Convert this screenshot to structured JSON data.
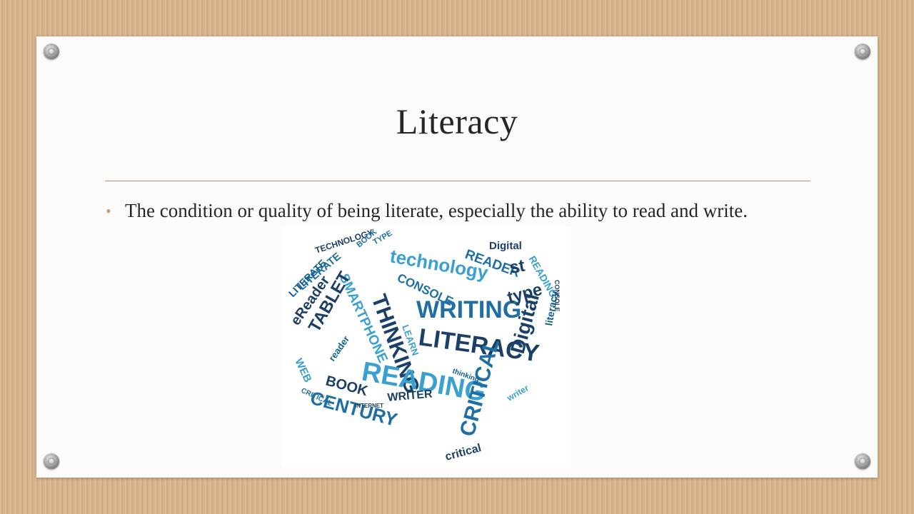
{
  "slide": {
    "title": "Literacy",
    "bullets": [
      "The condition or quality of being literate, especially the ability to read and write."
    ]
  },
  "word_cloud": {
    "shape": "speech-bubble",
    "colors": [
      "#1b3f66",
      "#1f6fa5",
      "#3aa0d0",
      "#0f5e8e",
      "#5ab5dd"
    ],
    "words": [
      {
        "text": "TECHNOLOGY"
      },
      {
        "text": "BOOK"
      },
      {
        "text": "TYPE"
      },
      {
        "text": "Digital"
      },
      {
        "text": "technology"
      },
      {
        "text": "READER"
      },
      {
        "text": "st"
      },
      {
        "text": "THINKING"
      },
      {
        "text": "SMARTPHONE"
      },
      {
        "text": "LITERATE"
      },
      {
        "text": "CONSOLE"
      },
      {
        "text": "READING"
      },
      {
        "text": "eReader"
      },
      {
        "text": "LITERATE"
      },
      {
        "text": "WRITING"
      },
      {
        "text": "type"
      },
      {
        "text": "TABLET"
      },
      {
        "text": "LEARN"
      },
      {
        "text": "LITERACY"
      },
      {
        "text": "Digital"
      },
      {
        "text": "literacy"
      },
      {
        "text": "reader"
      },
      {
        "text": "BOOK"
      },
      {
        "text": "READING"
      },
      {
        "text": "CRITICAL"
      },
      {
        "text": "WEB"
      },
      {
        "text": "CENTURY"
      },
      {
        "text": "WRITER"
      },
      {
        "text": "critical"
      },
      {
        "text": "writer"
      },
      {
        "text": "thinking"
      },
      {
        "text": "CONSOLE"
      },
      {
        "text": "CRITICAL"
      },
      {
        "text": "INTERNET"
      }
    ]
  }
}
